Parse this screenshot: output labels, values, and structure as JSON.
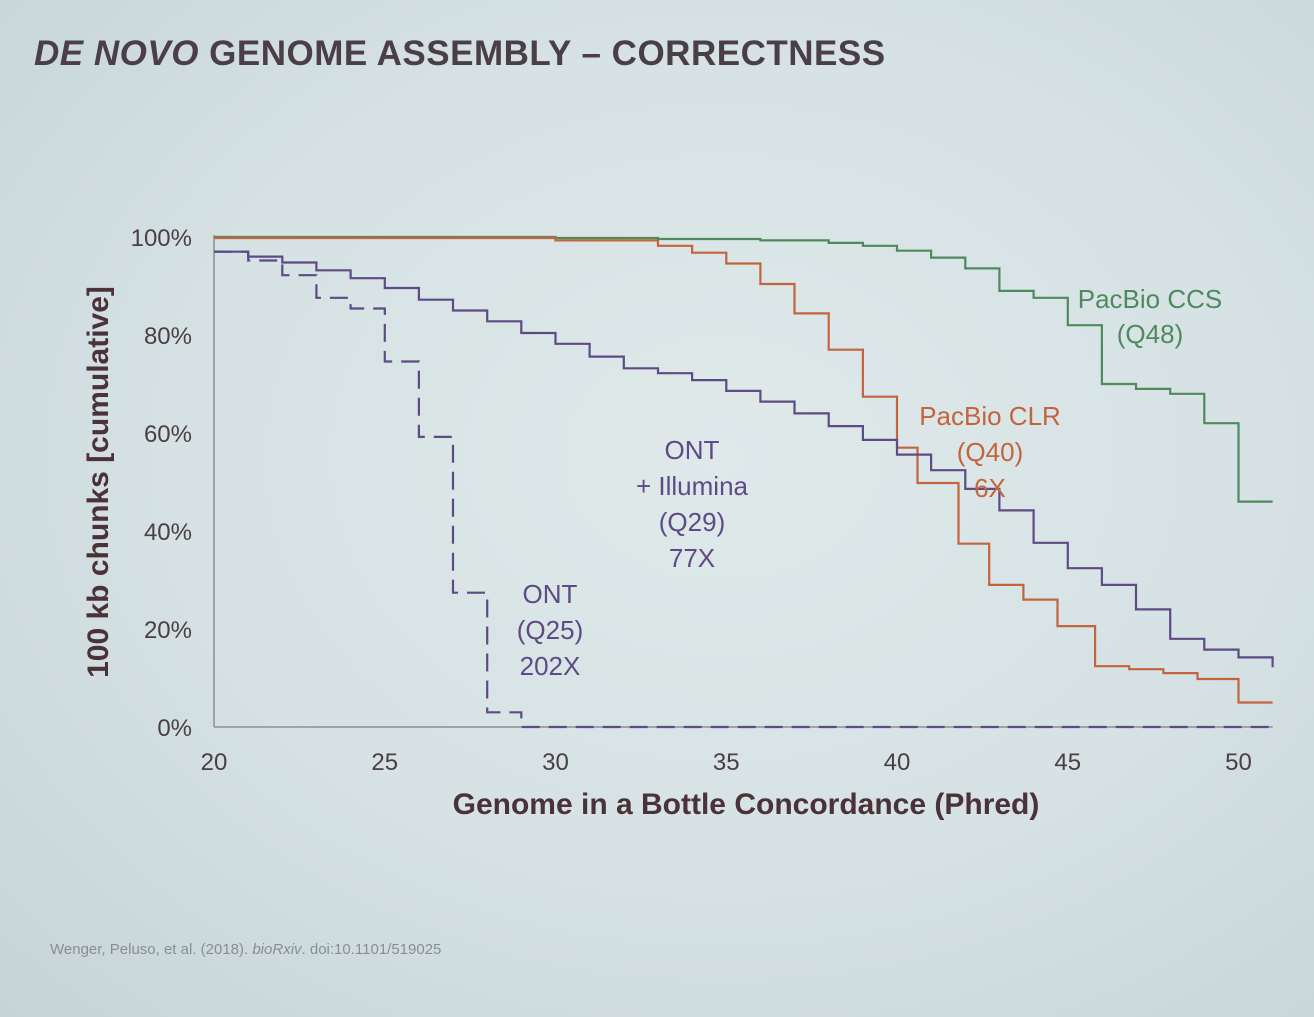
{
  "slide": {
    "title_italic": "DE NOVO",
    "title_rest": " GENOME ASSEMBLY – CORRECTNESS"
  },
  "citation": {
    "prefix": "Wenger, Peluso, et al. (2018). ",
    "journal": "bioRxiv",
    "suffix": ". doi:10.1101/519025"
  },
  "chart_data": {
    "type": "line",
    "step": true,
    "title": "",
    "xlabel": "Genome in a Bottle Concordance (Phred)",
    "ylabel": "100 kb chunks [cumulative]",
    "xlim": [
      20,
      51
    ],
    "ylim": [
      0,
      100
    ],
    "xticks": [
      20,
      25,
      30,
      35,
      40,
      45,
      50
    ],
    "yticks": [
      0,
      20,
      40,
      60,
      80,
      100
    ],
    "ytick_suffix": "%",
    "grid": false,
    "legend": "inline labels",
    "series": [
      {
        "key": "ccs",
        "label_lines": [
          "PacBio CCS",
          "(Q48)"
        ],
        "color": "#4f8a5e",
        "dashed": false,
        "x": [
          20,
          30,
          33,
          36,
          38,
          39,
          40,
          41,
          42,
          43,
          44,
          45,
          46,
          47,
          48,
          49,
          50,
          51
        ],
        "y": [
          100,
          99.8,
          99.6,
          99.3,
          98.8,
          98.2,
          97.2,
          95.8,
          93.6,
          89,
          87.6,
          82,
          70,
          69,
          68,
          62,
          46,
          46
        ]
      },
      {
        "key": "clr",
        "label_lines": [
          "PacBio CLR",
          "(Q40)",
          "6X"
        ],
        "color": "#c4643e",
        "dashed": false,
        "x": [
          20,
          30,
          33,
          34,
          35,
          36,
          37,
          38,
          39,
          40,
          40.6,
          41.8,
          42.7,
          43.7,
          44.7,
          45.8,
          46.8,
          47.8,
          48.8,
          50,
          51
        ],
        "y": [
          99.8,
          99.3,
          98.2,
          96.8,
          94.6,
          90.4,
          84.4,
          77,
          67.4,
          57,
          49.8,
          37.4,
          29,
          26,
          20.6,
          12.4,
          11.8,
          11,
          9.8,
          5,
          5
        ]
      },
      {
        "key": "ont_ill",
        "label_lines": [
          "ONT",
          "+ Illumina",
          "(Q29)",
          "77X"
        ],
        "color": "#5e4a84",
        "dashed": false,
        "x": [
          20,
          21,
          22,
          23,
          24,
          25,
          26,
          27,
          28,
          29,
          30,
          31,
          32,
          33,
          34,
          35,
          36,
          37,
          38,
          39,
          40,
          41,
          42,
          43,
          44,
          45,
          46,
          47,
          48,
          49,
          50,
          51
        ],
        "y": [
          97,
          96,
          94.8,
          93.2,
          91.6,
          89.6,
          87.2,
          85,
          82.8,
          80.4,
          78.2,
          75.6,
          73.2,
          72.2,
          70.8,
          68.6,
          66.4,
          64,
          61.4,
          58.6,
          55.6,
          52.4,
          48.6,
          44.2,
          37.6,
          32.4,
          29,
          24,
          18,
          15.8,
          14.2,
          12.2
        ]
      },
      {
        "key": "ont",
        "label_lines": [
          "ONT",
          "(Q25)",
          "202X"
        ],
        "color": "#5e4a84",
        "dashed": true,
        "x": [
          20,
          21,
          22,
          23,
          24,
          25,
          26,
          27,
          28,
          29,
          51
        ],
        "y": [
          97,
          95.2,
          92.2,
          87.6,
          85.4,
          74.6,
          59.2,
          27.4,
          3,
          0,
          0
        ]
      }
    ]
  }
}
